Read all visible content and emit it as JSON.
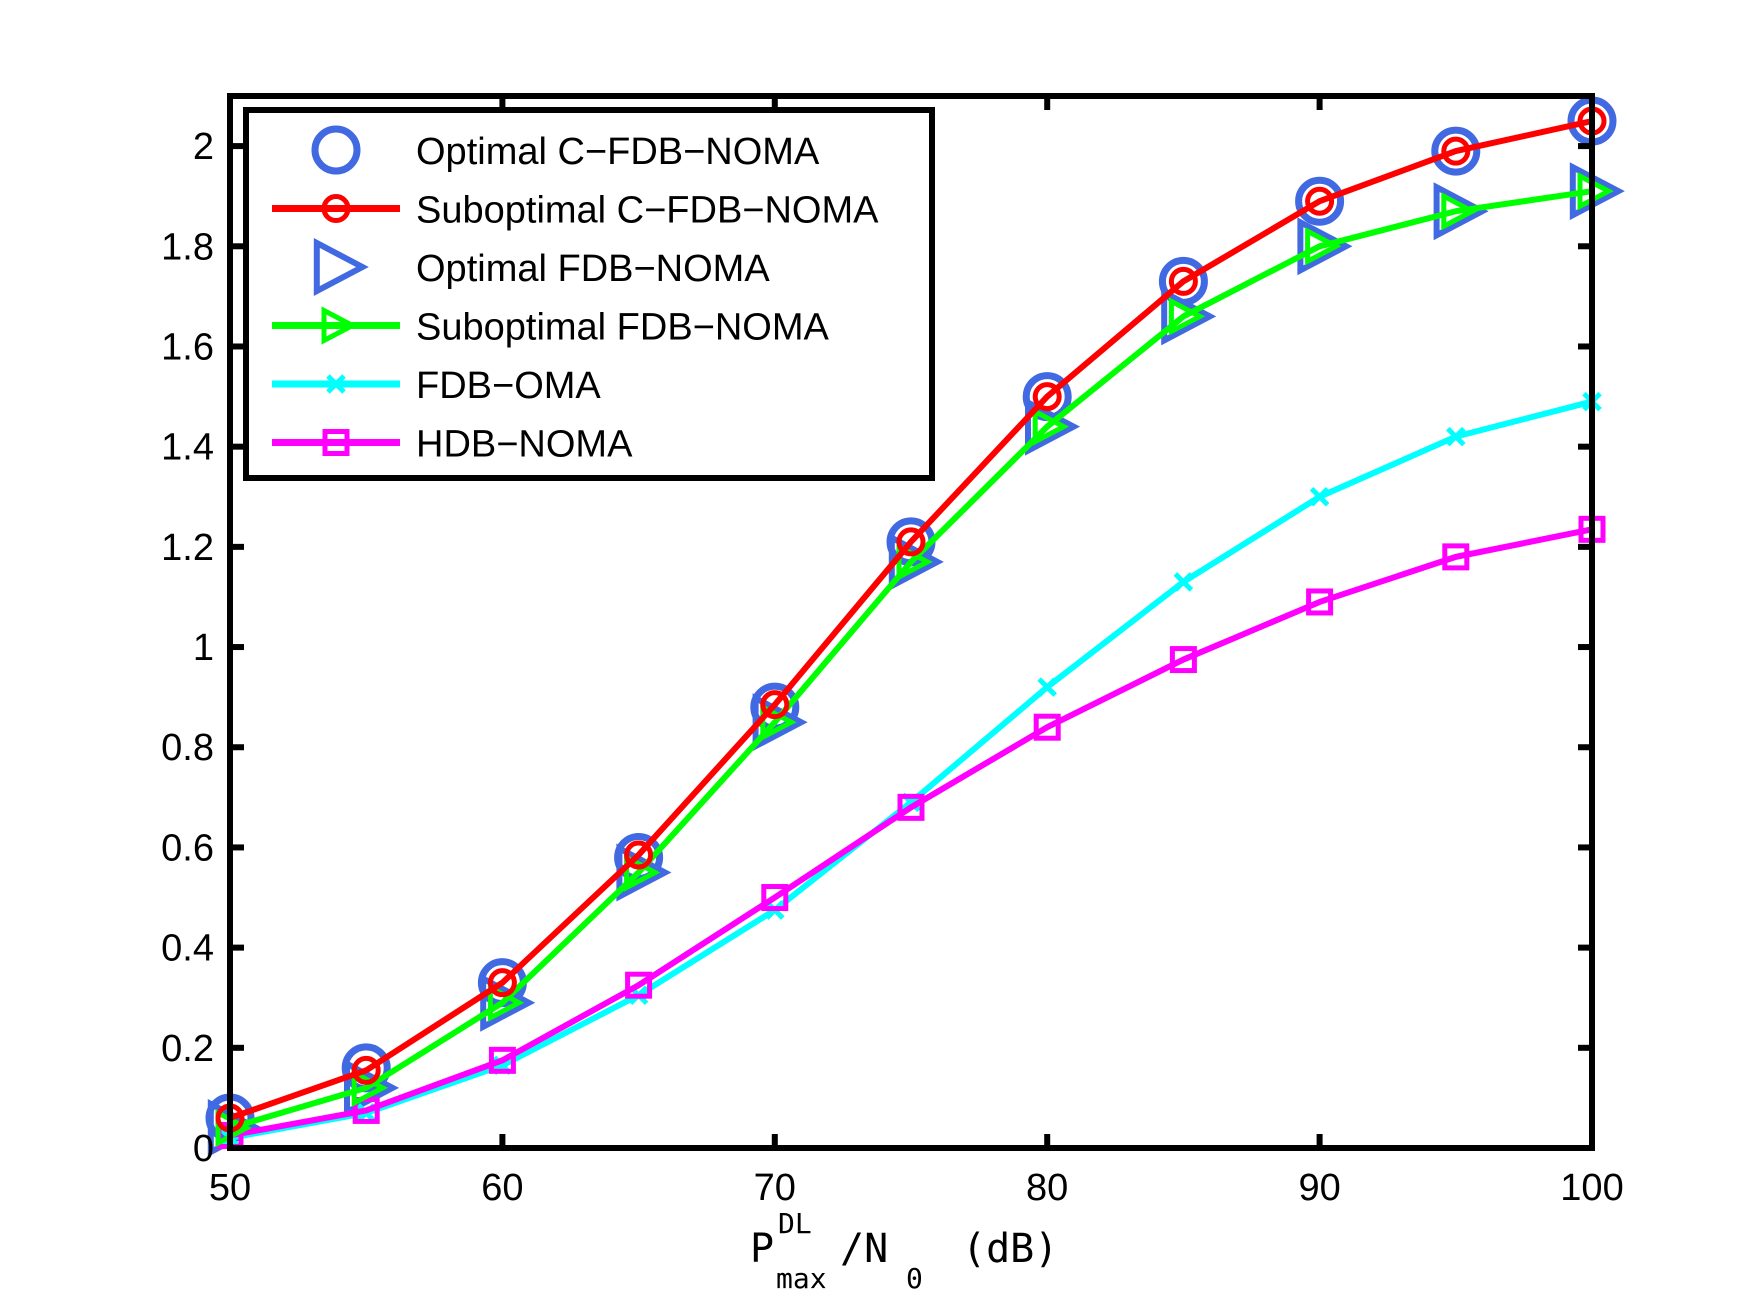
{
  "chart_data": {
    "type": "line",
    "title": "",
    "xlabel": {
      "main": "P",
      "superscript": "DL",
      "subscript": "max",
      "rest_main": "/N",
      "rest_subscript": "0",
      "unit": "(dB)"
    },
    "ylabel": "",
    "xlim": [
      50,
      100
    ],
    "ylim": [
      0,
      2.1
    ],
    "xticks": [
      50,
      60,
      70,
      80,
      90,
      100
    ],
    "yticks": [
      0,
      0.2,
      0.4,
      0.6,
      0.8,
      1,
      1.2,
      1.4,
      1.6,
      1.8,
      2
    ],
    "xtick_labels": [
      "50",
      "60",
      "70",
      "80",
      "90",
      "100"
    ],
    "ytick_labels": [
      "0",
      "0.2",
      "0.4",
      "0.6",
      "0.8",
      "1",
      "1.2",
      "1.4",
      "1.6",
      "1.8",
      "2"
    ],
    "grid": false,
    "legend_position": "top-left",
    "x": [
      50,
      55,
      60,
      65,
      70,
      75,
      80,
      85,
      90,
      95,
      100
    ],
    "series": [
      {
        "name": "Optimal C−FDB−NOMA",
        "color": "#4169e1",
        "marker": "circle-large",
        "line": false,
        "values": [
          0.06,
          0.16,
          0.33,
          0.58,
          0.88,
          1.21,
          1.5,
          1.73,
          1.89,
          1.99,
          2.05
        ]
      },
      {
        "name": "Suboptimal C−FDB−NOMA",
        "color": "#ff0000",
        "marker": "circle",
        "line": true,
        "values": [
          0.06,
          0.155,
          0.33,
          0.585,
          0.885,
          1.21,
          1.5,
          1.73,
          1.89,
          1.99,
          2.05
        ]
      },
      {
        "name": "Optimal FDB−NOMA",
        "color": "#4169e1",
        "marker": "triangle-right-large",
        "line": false,
        "values": [
          0.04,
          0.12,
          0.29,
          0.55,
          0.85,
          1.17,
          1.44,
          1.66,
          1.8,
          1.87,
          1.91
        ]
      },
      {
        "name": "Suboptimal FDB−NOMA",
        "color": "#00ff00",
        "marker": "triangle-right",
        "line": true,
        "values": [
          0.04,
          0.12,
          0.29,
          0.55,
          0.85,
          1.17,
          1.44,
          1.66,
          1.8,
          1.87,
          1.91
        ]
      },
      {
        "name": "FDB−OMA",
        "color": "#00ffff",
        "marker": "x",
        "line": true,
        "values": [
          0.02,
          0.07,
          0.165,
          0.305,
          0.475,
          0.69,
          0.92,
          1.13,
          1.3,
          1.42,
          1.49
        ]
      },
      {
        "name": "HDB−NOMA",
        "color": "#ff00ff",
        "marker": "square",
        "line": true,
        "values": [
          0.025,
          0.075,
          0.175,
          0.325,
          0.5,
          0.68,
          0.84,
          0.975,
          1.09,
          1.18,
          1.235
        ]
      }
    ]
  }
}
